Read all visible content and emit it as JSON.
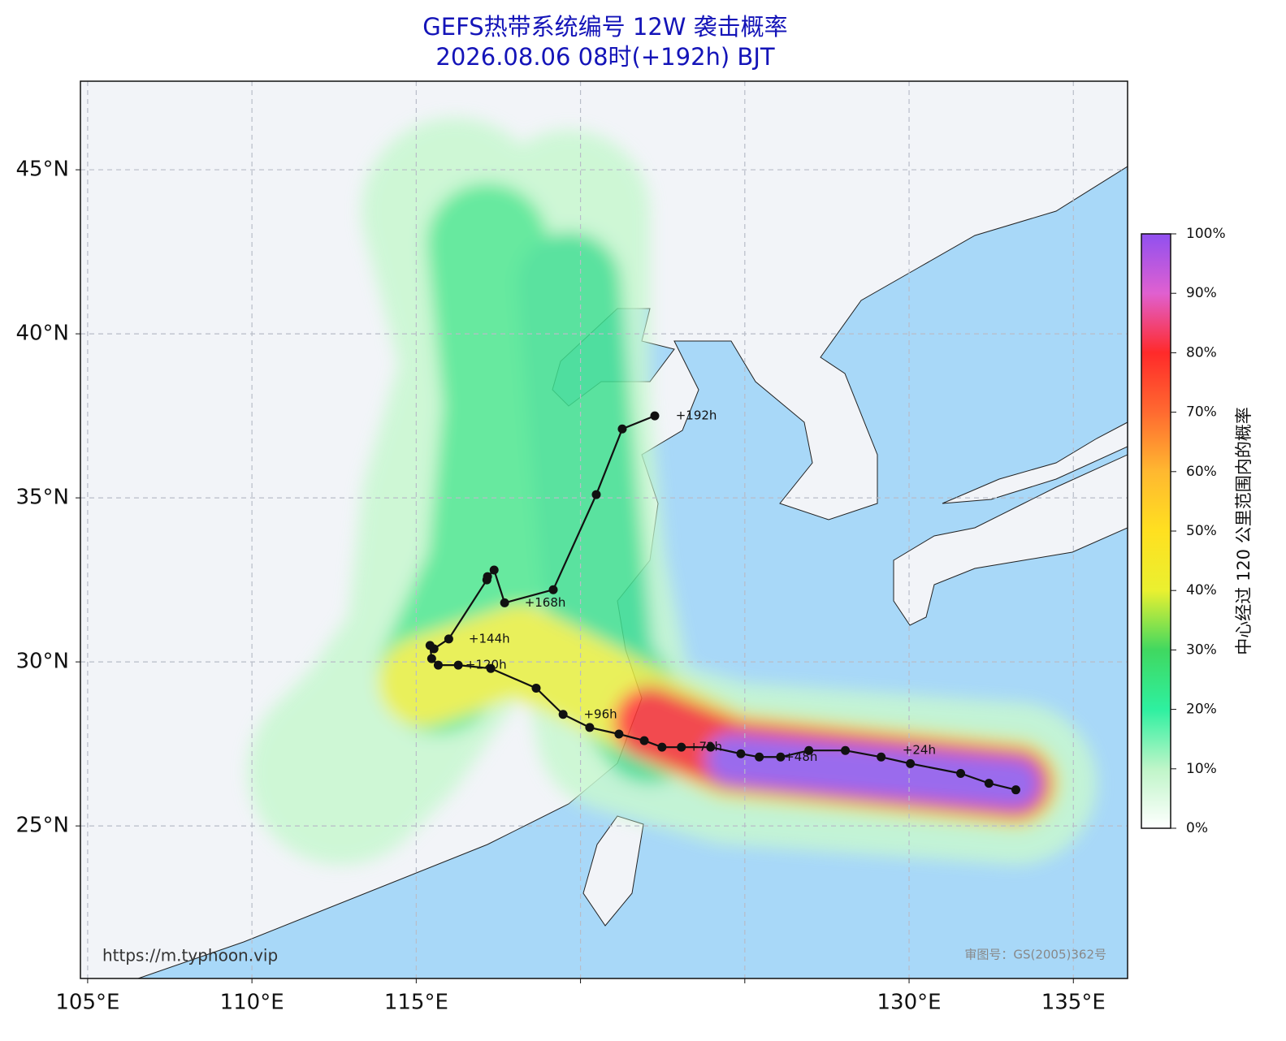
{
  "chart_data": {
    "type": "track-map",
    "title": "GEFS热带系统编号 12W 袭击概率",
    "subtitle": "2026.08.06 08时(+192h) BJT",
    "xlim": [
      104.78,
      136.65
    ],
    "ylim": [
      20.35,
      47.7
    ],
    "xticks": [
      {
        "value": 105,
        "label": "105°E"
      },
      {
        "value": 110,
        "label": "110°E"
      },
      {
        "value": 115,
        "label": "115°E"
      },
      {
        "value": 120,
        "label": ""
      },
      {
        "value": 125,
        "label": ""
      },
      {
        "value": 130,
        "label": "130°E"
      },
      {
        "value": 135,
        "label": "135°E"
      }
    ],
    "yticks": [
      {
        "value": 25,
        "label": "25°N"
      },
      {
        "value": 30,
        "label": "30°N"
      },
      {
        "value": 35,
        "label": "35°N"
      },
      {
        "value": 40,
        "label": "40°N"
      },
      {
        "value": 45,
        "label": "45°N"
      }
    ],
    "grid": true,
    "track": {
      "color": "#111111",
      "x": [
        133.25,
        132.43,
        131.57,
        130.04,
        129.15,
        128.06,
        126.95,
        126.09,
        125.44,
        124.88,
        123.96,
        123.07,
        122.48,
        121.94,
        121.17,
        120.28,
        119.47,
        118.65,
        117.27,
        116.28,
        115.67,
        115.47,
        115.42,
        115.54,
        115.99,
        117.15,
        117.17,
        117.37,
        117.69,
        119.17,
        120.48,
        121.27,
        122.26
      ],
      "y": [
        26.1,
        26.3,
        26.6,
        26.9,
        27.1,
        27.3,
        27.3,
        27.1,
        27.1,
        27.2,
        27.4,
        27.4,
        27.4,
        27.6,
        27.8,
        28.0,
        28.4,
        29.2,
        29.8,
        29.9,
        29.9,
        30.1,
        30.5,
        30.4,
        30.7,
        32.5,
        32.6,
        32.8,
        31.8,
        32.2,
        35.1,
        37.1,
        37.5
      ]
    },
    "annotations": [
      {
        "text": "+24h",
        "x": 129.5,
        "y": 27.3
      },
      {
        "text": "+48h",
        "x": 125.9,
        "y": 27.1
      },
      {
        "text": "+72h",
        "x": 123.0,
        "y": 27.4
      },
      {
        "text": "+96h",
        "x": 119.8,
        "y": 28.4
      },
      {
        "text": "+120h",
        "x": 116.2,
        "y": 29.9
      },
      {
        "text": "+144h",
        "x": 116.3,
        "y": 30.7
      },
      {
        "text": "+168h",
        "x": 118.0,
        "y": 31.8
      },
      {
        "text": "+192h",
        "x": 122.6,
        "y": 37.5
      }
    ],
    "colorbar": {
      "label": "中心经过 120 公里范围内的概率",
      "lim": [
        0,
        100
      ],
      "ticks": [
        {
          "value": 0,
          "label": "0%"
        },
        {
          "value": 10,
          "label": "10%"
        },
        {
          "value": 20,
          "label": "20%"
        },
        {
          "value": 30,
          "label": "30%"
        },
        {
          "value": 40,
          "label": "40%"
        },
        {
          "value": 50,
          "label": "50%"
        },
        {
          "value": 60,
          "label": "60%"
        },
        {
          "value": 70,
          "label": "70%"
        },
        {
          "value": 80,
          "label": "80%"
        },
        {
          "value": 90,
          "label": "90%"
        },
        {
          "value": 100,
          "label": "100%"
        }
      ]
    },
    "source": "https://m.typhoon.vip",
    "map_approval": "审图号：GS(2005)362号"
  }
}
